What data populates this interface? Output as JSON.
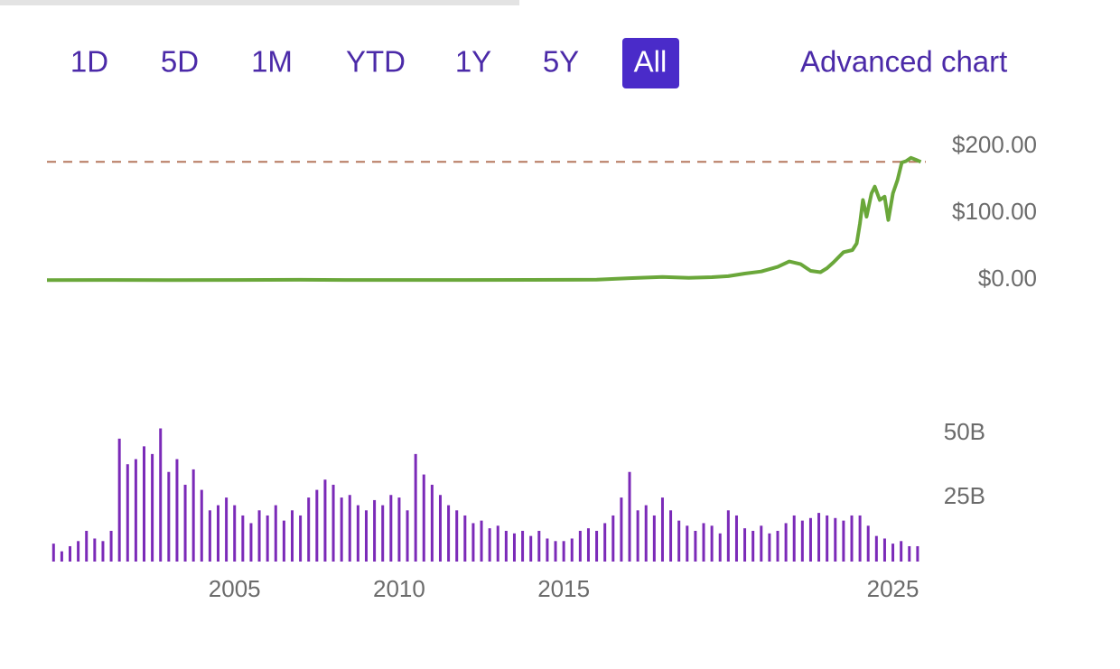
{
  "range_buttons": [
    {
      "label": "1D",
      "selected": false
    },
    {
      "label": "5D",
      "selected": false
    },
    {
      "label": "1M",
      "selected": false
    },
    {
      "label": "YTD",
      "selected": false
    },
    {
      "label": "1Y",
      "selected": false
    },
    {
      "label": "5Y",
      "selected": false
    },
    {
      "label": "All",
      "selected": true
    }
  ],
  "advanced_chart_link": "Advanced chart",
  "chart_data": [
    {
      "type": "line",
      "color": "#6aa73a",
      "x": [
        1999.3,
        2001,
        2003,
        2005,
        2007,
        2008.5,
        2010,
        2012,
        2014,
        2016,
        2017,
        2018,
        2018.8,
        2019.5,
        2020,
        2020.5,
        2021,
        2021.5,
        2021.85,
        2022.2,
        2022.5,
        2022.8,
        2023.0,
        2023.2,
        2023.5,
        2023.77,
        2023.9,
        2024.0,
        2024.09,
        2024.2,
        2024.35,
        2024.45,
        2024.6,
        2024.75,
        2024.86,
        2025.0,
        2025.14,
        2025.27,
        2025.4,
        2025.55,
        2025.7,
        2025.85
      ],
      "values": [
        0.1,
        0.3,
        0.2,
        0.3,
        0.6,
        0.3,
        0.3,
        0.3,
        0.5,
        0.8,
        3,
        5,
        3.5,
        4.5,
        6,
        10,
        13,
        20,
        28,
        24,
        14,
        12,
        18,
        27,
        42,
        45,
        55,
        85,
        120,
        95,
        130,
        140,
        120,
        125,
        90,
        130,
        150,
        176,
        178,
        183,
        180,
        177
      ],
      "reference_line": {
        "value": 177,
        "color": "#b5785f",
        "style": "dashed"
      },
      "xlim": [
        1999.3,
        2026.0
      ],
      "ylim": [
        -40,
        230
      ],
      "yticks": [
        {
          "value": 200,
          "label": "$200.00"
        },
        {
          "value": 100,
          "label": "$100.00"
        },
        {
          "value": 0,
          "label": "$0.00"
        }
      ]
    },
    {
      "type": "bar",
      "color": "#7b2ab8",
      "x": [
        1999.5,
        1999.75,
        2000,
        2000.25,
        2000.5,
        2000.75,
        2001,
        2001.25,
        2001.5,
        2001.75,
        2002,
        2002.25,
        2002.5,
        2002.75,
        2003,
        2003.25,
        2003.5,
        2003.75,
        2004,
        2004.25,
        2004.5,
        2004.75,
        2005,
        2005.25,
        2005.5,
        2005.75,
        2006,
        2006.25,
        2006.5,
        2006.75,
        2007,
        2007.25,
        2007.5,
        2007.75,
        2008,
        2008.25,
        2008.5,
        2008.75,
        2009,
        2009.25,
        2009.5,
        2009.75,
        2010,
        2010.25,
        2010.5,
        2010.75,
        2011,
        2011.25,
        2011.5,
        2011.75,
        2012,
        2012.25,
        2012.5,
        2012.75,
        2013,
        2013.25,
        2013.5,
        2013.75,
        2014,
        2014.25,
        2014.5,
        2014.75,
        2015,
        2015.25,
        2015.5,
        2015.75,
        2016,
        2016.25,
        2016.5,
        2016.75,
        2017,
        2017.25,
        2017.5,
        2017.75,
        2018,
        2018.25,
        2018.5,
        2018.75,
        2019,
        2019.25,
        2019.5,
        2019.75,
        2020,
        2020.25,
        2020.5,
        2020.75,
        2021,
        2021.25,
        2021.5,
        2021.75,
        2022,
        2022.25,
        2022.5,
        2022.75,
        2023,
        2023.25,
        2023.5,
        2023.75,
        2024,
        2024.25,
        2024.5,
        2024.75,
        2025,
        2025.25,
        2025.5,
        2025.75
      ],
      "values": [
        7,
        4,
        6,
        8,
        12,
        9,
        8,
        12,
        48,
        38,
        40,
        45,
        42,
        52,
        35,
        40,
        30,
        36,
        28,
        20,
        22,
        25,
        22,
        18,
        15,
        20,
        18,
        22,
        16,
        20,
        18,
        25,
        28,
        32,
        30,
        25,
        26,
        22,
        20,
        24,
        22,
        26,
        25,
        20,
        42,
        34,
        30,
        26,
        22,
        20,
        18,
        15,
        16,
        13,
        14,
        12,
        11,
        12,
        10,
        12,
        9,
        8,
        8,
        9,
        12,
        13,
        12,
        15,
        18,
        25,
        35,
        20,
        22,
        18,
        25,
        20,
        16,
        14,
        12,
        15,
        14,
        11,
        20,
        18,
        13,
        12,
        14,
        11,
        12,
        15,
        18,
        16,
        17,
        19,
        18,
        17,
        16,
        18,
        18,
        14,
        10,
        9,
        7,
        8,
        6,
        6
      ],
      "xlim": [
        1999.3,
        2026.0
      ],
      "ylim": [
        0,
        55
      ],
      "xticks": [
        2005,
        2010,
        2015,
        2025
      ],
      "yticks": [
        {
          "value": 50,
          "label": "50B"
        },
        {
          "value": 25,
          "label": "25B"
        }
      ]
    }
  ]
}
